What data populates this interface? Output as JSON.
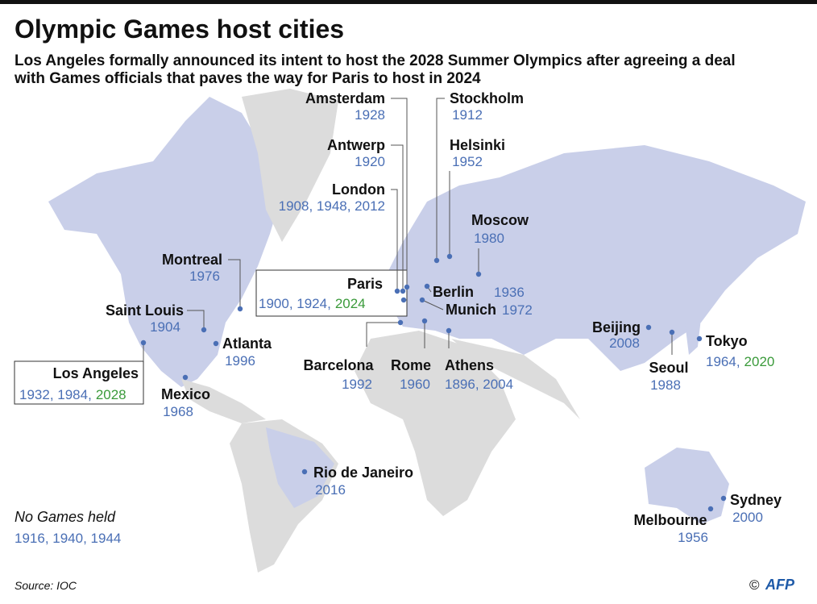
{
  "header": {
    "title": "Olympic Games host cities",
    "subtitle": [
      "Los Angeles formally announced its intent to host the 2028 Summer Olympics after agreeing a deal",
      "with Games officials that paves the way for Paris to host in 2024"
    ]
  },
  "cities": [
    {
      "name": "Amsterdam",
      "years": "1928"
    },
    {
      "name": "Antwerp",
      "years": "1920"
    },
    {
      "name": "London",
      "years": "1908, 1948, 2012"
    },
    {
      "name": "Stockholm",
      "years": "1912"
    },
    {
      "name": "Helsinki",
      "years": "1952"
    },
    {
      "name": "Moscow",
      "years": "1980"
    },
    {
      "name": "Montreal",
      "years": "1976"
    },
    {
      "name": "Paris",
      "years": "1900, 1924,",
      "next": "2024"
    },
    {
      "name": "Berlin",
      "years": "1936"
    },
    {
      "name": "Munich",
      "years": "1972"
    },
    {
      "name": "Saint Louis",
      "years": "1904"
    },
    {
      "name": "Atlanta",
      "years": "1996"
    },
    {
      "name": "Los Angeles",
      "years": "1932, 1984,",
      "next": "2028"
    },
    {
      "name": "Mexico",
      "years": "1968"
    },
    {
      "name": "Barcelona",
      "years": "1992"
    },
    {
      "name": "Rome",
      "years": "1960"
    },
    {
      "name": "Athens",
      "years": "1896, 2004"
    },
    {
      "name": "Beijing",
      "years": "2008"
    },
    {
      "name": "Seoul",
      "years": "1988"
    },
    {
      "name": "Tokyo",
      "years": "1964,",
      "next": "2020"
    },
    {
      "name": "Rio de Janeiro",
      "years": "2016"
    },
    {
      "name": "Sydney",
      "years": "2000"
    },
    {
      "name": "Melbourne",
      "years": "1956"
    }
  ],
  "no_games": {
    "label": "No Games held",
    "years": "1916, 1940, 1944"
  },
  "source": "Source: IOC",
  "credit": {
    "symbol": "©",
    "agency": "AFP"
  }
}
